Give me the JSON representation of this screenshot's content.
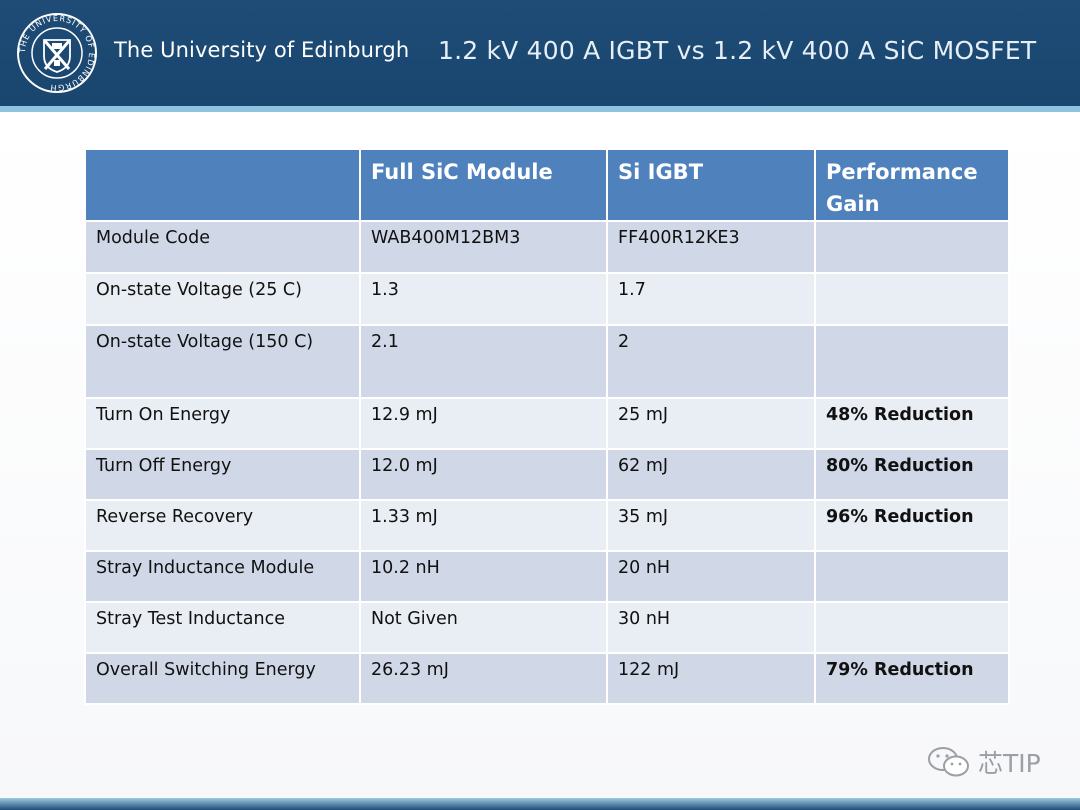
{
  "header": {
    "crest_text": "THE UNIVERSITY OF EDINBURGH",
    "university": "The University of Edinburgh",
    "title": "1.2 kV 400 A IGBT vs 1.2 kV 400 A SiC MOSFET"
  },
  "table": {
    "columns": [
      "",
      "Full SiC Module",
      "Si IGBT",
      "Performance Gain"
    ],
    "rows": [
      {
        "label": "Module Code",
        "sic": "WAB400M12BM3",
        "igbt": "FF400R12KE3",
        "gain": ""
      },
      {
        "label": "On-state Voltage (25 C)",
        "sic": "1.3",
        "igbt": "1.7",
        "gain": ""
      },
      {
        "label": "On-state Voltage (150 C)",
        "sic": "2.1",
        "igbt": "2",
        "gain": ""
      },
      {
        "label": "Turn On Energy",
        "sic": "12.9 mJ",
        "igbt": "25 mJ",
        "gain": "48% Reduction"
      },
      {
        "label": "Turn Off Energy",
        "sic": "12.0 mJ",
        "igbt": "62 mJ",
        "gain": "80% Reduction"
      },
      {
        "label": "Reverse Recovery",
        "sic": "1.33 mJ",
        "igbt": "35 mJ",
        "gain": "96% Reduction"
      },
      {
        "label": "Stray Inductance Module",
        "sic": "10.2 nH",
        "igbt": "20 nH",
        "gain": ""
      },
      {
        "label": "Stray Test Inductance",
        "sic": "Not Given",
        "igbt": "30 nH",
        "gain": ""
      },
      {
        "label": "Overall Switching Energy",
        "sic": "26.23 mJ",
        "igbt": "122 mJ",
        "gain": " 79% Reduction"
      }
    ]
  },
  "watermark": {
    "icon": "wechat-icon",
    "text": "芯TIP"
  }
}
